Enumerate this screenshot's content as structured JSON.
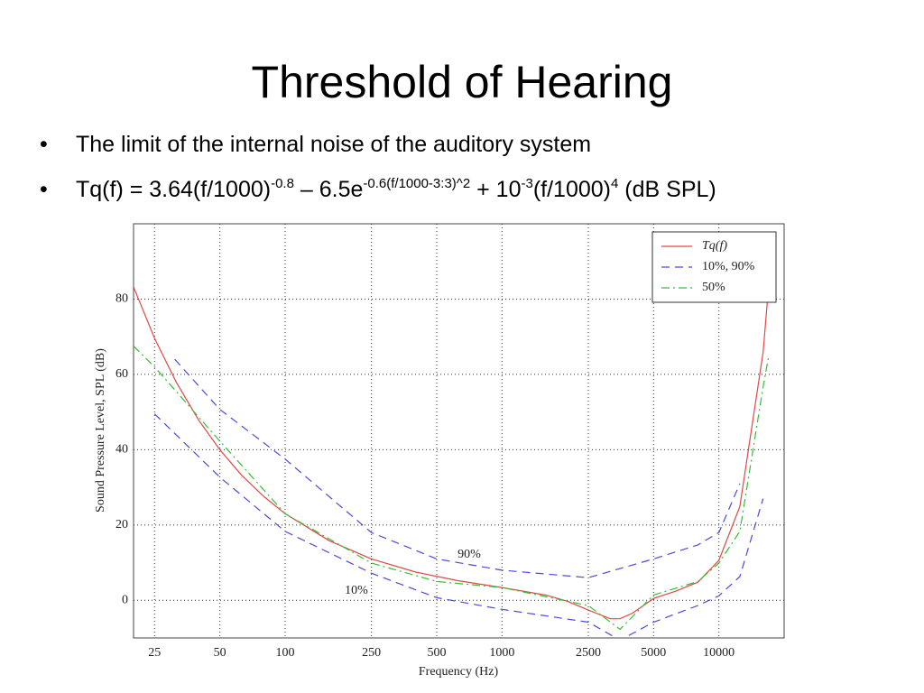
{
  "header": {
    "title": "Threshold of Hearing"
  },
  "bullets": [
    [
      {
        "text": "The limit of the internal noise of the auditory system",
        "sup": false
      }
    ],
    [
      {
        "text": "Tq(f) = 3.64(f/1000)",
        "sup": false
      },
      {
        "text": "-0.8",
        "sup": true
      },
      {
        "text": " – 6.5e",
        "sup": false
      },
      {
        "text": "-0.6(f/1000-3:3)^2",
        "sup": true
      },
      {
        "text": " + 10",
        "sup": false
      },
      {
        "text": "-3",
        "sup": true
      },
      {
        "text": "(f/1000)",
        "sup": false
      },
      {
        "text": "4",
        "sup": true
      },
      {
        "text": " (dB SPL)",
        "sup": false
      }
    ]
  ],
  "chart_data": {
    "type": "line",
    "x_label": "Frequency (Hz)",
    "y_label": "Sound Pressure Level, SPL (dB)",
    "log_x": true,
    "grid": true,
    "xlim": [
      20,
      20000
    ],
    "xticks": [
      25,
      50,
      100,
      250,
      500,
      1000,
      2500,
      5000,
      10000
    ],
    "ylim": [
      -10,
      100
    ],
    "yticks": [
      0,
      20,
      40,
      60,
      80
    ],
    "legend_position": "upper right",
    "legend_dashed_label": "10%, 90%",
    "series": [
      {
        "name": "Tq(f)",
        "color": "#e04848",
        "dash": "solid",
        "x": [
          20,
          25,
          31.5,
          40,
          50,
          63,
          80,
          100,
          160,
          250,
          400,
          630,
          1000,
          1600,
          2000,
          2500,
          3150,
          3500,
          4000,
          5000,
          6300,
          8000,
          10000,
          12500,
          16000,
          17000
        ],
        "values": [
          83.2,
          69.6,
          57.9,
          47.8,
          40.0,
          33.2,
          27.5,
          23.0,
          15.8,
          11.0,
          7.5,
          5.2,
          3.4,
          1.35,
          -0.25,
          -2.6,
          -4.9,
          -4.9,
          -3.4,
          0.5,
          2.4,
          4.8,
          10.6,
          24.9,
          65.9,
          83.9
        ]
      },
      {
        "name": "90%",
        "color": "#4a4adb",
        "dash": "dashed",
        "x": [
          31,
          50,
          100,
          250,
          500,
          1000,
          2500,
          5000,
          8000,
          10000,
          12500
        ],
        "values": [
          64,
          50.7,
          37.5,
          18,
          11,
          8,
          6,
          11,
          14.7,
          18,
          31
        ]
      },
      {
        "name": "10%",
        "color": "#4a4adb",
        "dash": "dashed",
        "x": [
          25,
          50,
          100,
          250,
          500,
          1000,
          2500,
          3500,
          5000,
          8000,
          10000,
          12500,
          16000
        ],
        "values": [
          49.5,
          32.7,
          18.3,
          7.2,
          0.7,
          -2.4,
          -5.8,
          -10.6,
          -5.8,
          -1.4,
          1.2,
          6.3,
          27
        ]
      },
      {
        "name": "50%",
        "color": "#33c033",
        "dash": "dashdot",
        "x": [
          20,
          25,
          50,
          100,
          250,
          500,
          1000,
          2500,
          3500,
          5000,
          8000,
          10000,
          12500,
          16000,
          17000
        ],
        "values": [
          67.5,
          62,
          42.3,
          23,
          9.9,
          5,
          3.4,
          -1.4,
          -7.7,
          1.4,
          5,
          9.9,
          18.3,
          56.7,
          65
        ]
      }
    ]
  }
}
